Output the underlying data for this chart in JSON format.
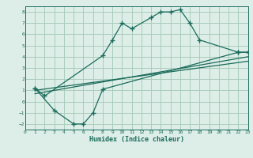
{
  "xlabel": "Humidex (Indice chaleur)",
  "bg_color": "#ddeee8",
  "grid_color": "#aaccbb",
  "line_color": "#1a6b5a",
  "xlim": [
    0,
    23
  ],
  "ylim": [
    -2.5,
    8.5
  ],
  "xticks": [
    0,
    1,
    2,
    3,
    4,
    5,
    6,
    7,
    8,
    9,
    10,
    11,
    12,
    13,
    14,
    15,
    16,
    17,
    18,
    19,
    20,
    21,
    22,
    23
  ],
  "yticks": [
    -2,
    -1,
    0,
    1,
    2,
    3,
    4,
    5,
    6,
    7,
    8
  ],
  "curve1_x": [
    1,
    2,
    8,
    9,
    10,
    11,
    13,
    14,
    15,
    16,
    17,
    18,
    22,
    23
  ],
  "curve1_y": [
    1.2,
    0.5,
    4.1,
    5.5,
    7.0,
    6.5,
    7.5,
    8.0,
    8.0,
    8.2,
    7.0,
    5.5,
    4.4,
    4.4
  ],
  "curve2_x": [
    1,
    3,
    5,
    6,
    7,
    8,
    22,
    23
  ],
  "curve2_y": [
    1.2,
    -0.8,
    -2.0,
    -2.0,
    -1.0,
    1.1,
    4.4,
    4.4
  ],
  "line1_x": [
    1,
    23
  ],
  "line1_y": [
    0.7,
    4.0
  ],
  "line2_x": [
    1,
    23
  ],
  "line2_y": [
    1.0,
    3.6
  ]
}
